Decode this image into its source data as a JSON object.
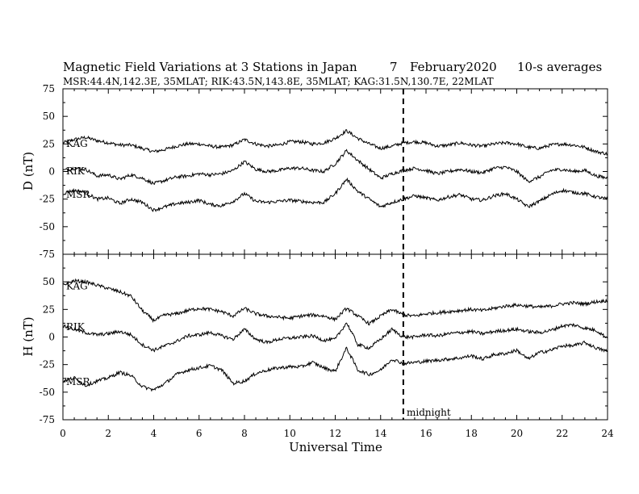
{
  "header": {
    "title_main": "Magnetic Field Variations at 3 Stations in Japan",
    "title_day": "7",
    "title_month": "February2020",
    "title_avg": "10-s averages",
    "subtitle": "MSR:44.4N,142.3E, 35MLAT;  RIK:43.5N,143.8E, 35MLAT;  KAG:31.5N,130.7E, 22MLAT"
  },
  "chart_data": {
    "type": "line",
    "title": "Magnetic Field Variations at 3 Stations in Japan",
    "xlabel": "Universal Time",
    "xlim": [
      0,
      24
    ],
    "xticks": [
      0,
      2,
      4,
      6,
      8,
      10,
      12,
      14,
      16,
      18,
      20,
      22,
      24
    ],
    "x": [
      0,
      0.5,
      1,
      1.5,
      2,
      2.5,
      3,
      3.5,
      4,
      4.5,
      5,
      5.5,
      6,
      6.5,
      7,
      7.5,
      8,
      8.5,
      9,
      9.5,
      10,
      10.5,
      11,
      11.5,
      12,
      12.5,
      13,
      13.5,
      14,
      14.5,
      15,
      15.5,
      16,
      16.5,
      17,
      17.5,
      18,
      18.5,
      19,
      19.5,
      20,
      20.5,
      21,
      21.5,
      22,
      22.5,
      23,
      23.5,
      24
    ],
    "annotation": {
      "label": "midnight",
      "x": 15
    },
    "panels": [
      {
        "ylabel": "D (nT)",
        "ylim": [
          -75,
          75
        ],
        "yticks": [
          75,
          50,
          25,
          0,
          -25,
          -50,
          -75
        ],
        "series": [
          {
            "name": "KAG",
            "values": [
              26,
              29,
              31,
              28,
              26,
              24,
              24,
              21,
              18,
              20,
              23,
              25,
              25,
              23,
              22,
              24,
              29,
              25,
              23,
              24,
              27,
              27,
              25,
              26,
              30,
              37,
              30,
              25,
              21,
              23,
              26,
              27,
              26,
              23,
              24,
              26,
              24,
              23,
              25,
              26,
              25,
              22,
              21,
              24,
              25,
              24,
              22,
              18,
              16
            ]
          },
          {
            "name": "RIK",
            "values": [
              1,
              3,
              2,
              -4,
              -3,
              -7,
              -3,
              -6,
              -11,
              -8,
              -5,
              -4,
              -2,
              -3,
              -2,
              1,
              9,
              2,
              0,
              1,
              3,
              3,
              1,
              0,
              7,
              19,
              10,
              2,
              -6,
              -2,
              1,
              3,
              1,
              -2,
              0,
              2,
              0,
              -1,
              3,
              4,
              0,
              -9,
              -5,
              1,
              2,
              0,
              1,
              -4,
              -6
            ]
          },
          {
            "name": "MSR",
            "values": [
              -20,
              -17,
              -19,
              -25,
              -24,
              -29,
              -25,
              -28,
              -35,
              -32,
              -29,
              -28,
              -26,
              -30,
              -31,
              -27,
              -20,
              -27,
              -28,
              -27,
              -26,
              -27,
              -28,
              -28,
              -20,
              -7,
              -18,
              -25,
              -32,
              -28,
              -25,
              -22,
              -24,
              -26,
              -23,
              -21,
              -25,
              -26,
              -22,
              -20,
              -25,
              -32,
              -27,
              -21,
              -17,
              -19,
              -20,
              -23,
              -25
            ]
          }
        ]
      },
      {
        "ylabel": "H (nT)",
        "ylim": [
          -75,
          75
        ],
        "yticks": [
          75,
          50,
          25,
          0,
          -25,
          -50,
          -75
        ],
        "series": [
          {
            "name": "KAG",
            "values": [
              47,
              51,
              50,
              47,
              44,
              41,
              37,
              24,
              15,
              20,
              21,
              24,
              26,
              25,
              23,
              19,
              26,
              21,
              19,
              18,
              17,
              19,
              20,
              19,
              16,
              26,
              19,
              12,
              19,
              25,
              20,
              19,
              21,
              22,
              23,
              24,
              25,
              24,
              26,
              28,
              29,
              28,
              27,
              28,
              30,
              31,
              30,
              32,
              33
            ]
          },
          {
            "name": "RIK",
            "values": [
              10,
              7,
              4,
              2,
              3,
              5,
              2,
              -7,
              -12,
              -8,
              -4,
              1,
              2,
              4,
              1,
              -2,
              7,
              -2,
              -5,
              -2,
              -1,
              0,
              1,
              -3,
              -2,
              13,
              -7,
              -10,
              -2,
              7,
              0,
              0,
              2,
              1,
              3,
              4,
              5,
              3,
              5,
              6,
              7,
              5,
              4,
              6,
              10,
              11,
              8,
              6,
              -1
            ]
          },
          {
            "name": "MSR",
            "values": [
              -40,
              -37,
              -44,
              -40,
              -37,
              -32,
              -35,
              -45,
              -48,
              -42,
              -34,
              -30,
              -28,
              -26,
              -30,
              -42,
              -40,
              -33,
              -30,
              -28,
              -27,
              -27,
              -23,
              -28,
              -31,
              -10,
              -30,
              -34,
              -30,
              -20,
              -24,
              -23,
              -22,
              -21,
              -20,
              -19,
              -17,
              -20,
              -16,
              -15,
              -12,
              -20,
              -14,
              -12,
              -8,
              -8,
              -5,
              -10,
              -13
            ]
          }
        ]
      }
    ]
  }
}
